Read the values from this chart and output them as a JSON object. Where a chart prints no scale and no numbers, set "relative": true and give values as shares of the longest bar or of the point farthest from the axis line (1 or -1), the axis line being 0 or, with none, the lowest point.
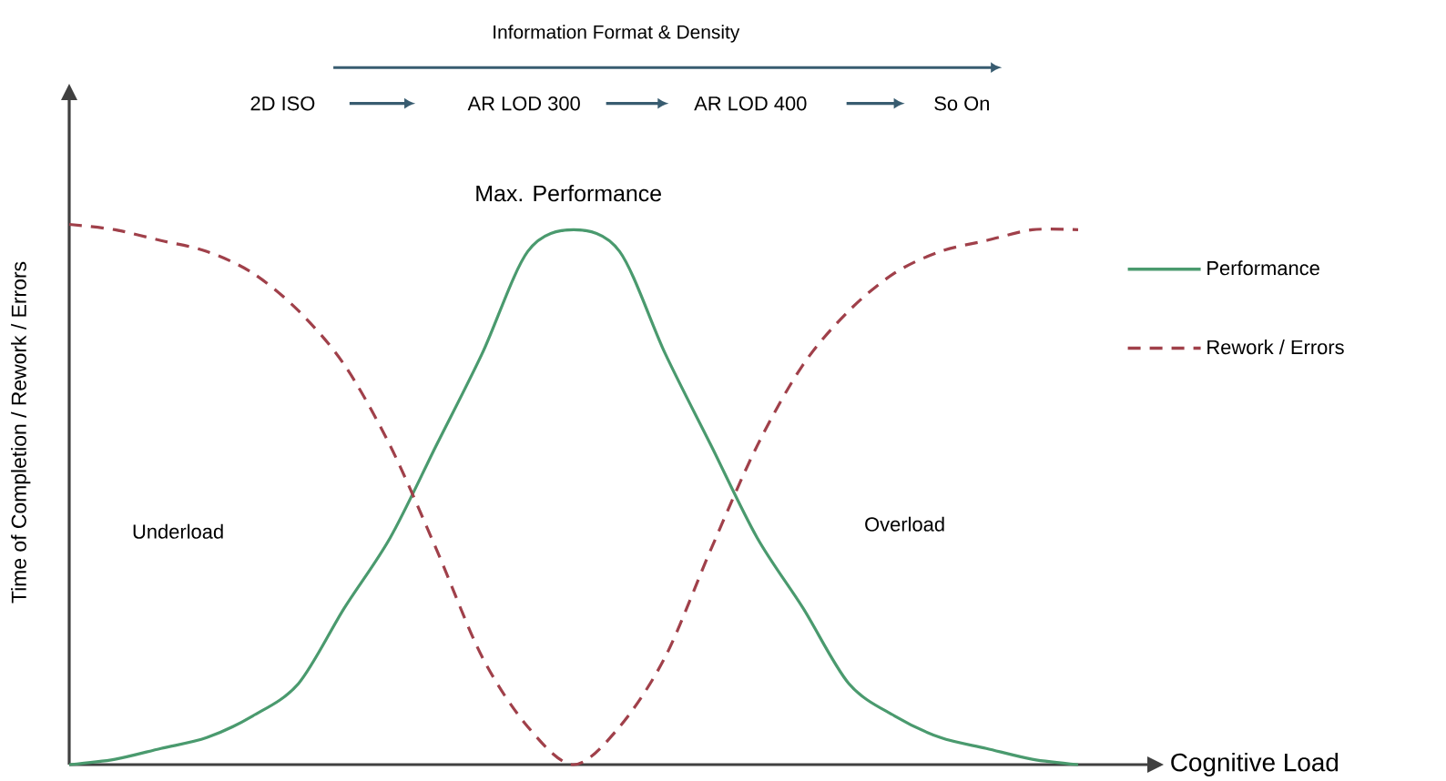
{
  "chart_data": {
    "type": "line",
    "relative": true,
    "xlabel": "Cognitive Load",
    "ylabel": "Time of Completion / Rework / Errors",
    "categories": [
      null,
      null,
      null,
      null,
      null,
      null,
      null,
      null,
      null,
      null,
      null,
      null,
      null,
      null,
      null,
      null,
      null,
      null,
      null,
      null,
      null,
      null,
      null
    ],
    "series": [
      {
        "name": "Performance",
        "color": "#4a9a6e",
        "line_style": "solid",
        "values": [
          0,
          0.01,
          0.03,
          0.05,
          0.09,
          0.15,
          0.29,
          0.42,
          0.59,
          0.76,
          0.95,
          0.99,
          0.95,
          0.76,
          0.59,
          0.42,
          0.29,
          0.15,
          0.09,
          0.05,
          0.03,
          0.01,
          0
        ]
      },
      {
        "name": "Rework / Errors",
        "color": "#a0404a",
        "line_style": "dashed",
        "values": [
          1.0,
          0.99,
          0.97,
          0.95,
          0.91,
          0.84,
          0.74,
          0.59,
          0.4,
          0.2,
          0.07,
          0,
          0.07,
          0.2,
          0.4,
          0.59,
          0.74,
          0.84,
          0.91,
          0.95,
          0.97,
          0.99,
          0.99
        ]
      }
    ],
    "legend": "right",
    "marker": "none",
    "annotations": [
      "Information Format & Density",
      "2D ISO",
      "AR LOD 300",
      "AR LOD 400",
      "So On",
      "Max. Performance",
      "Underload",
      "Overload"
    ]
  }
}
